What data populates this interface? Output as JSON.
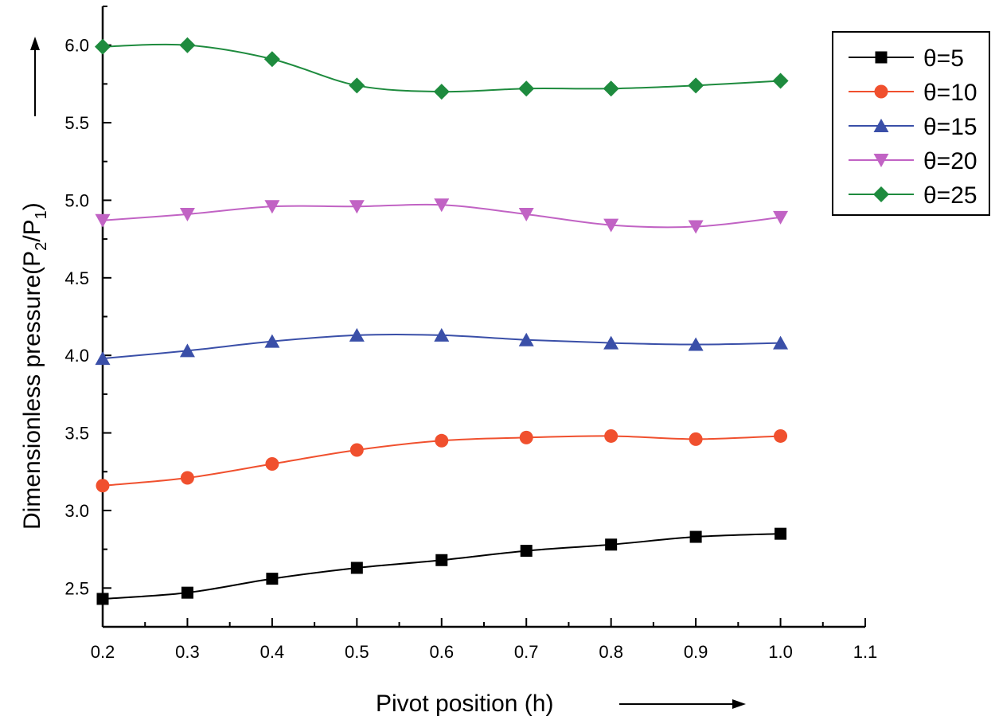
{
  "chart_data": {
    "type": "line",
    "title": "",
    "xlabel": "Pivot position (h)",
    "ylabel_main": "Dimensionless pressure(P",
    "ylabel_sub1": "2",
    "ylabel_mid": "/P",
    "ylabel_sub2": "1",
    "ylabel_end": ")",
    "xlim": [
      0.2,
      1.1
    ],
    "ylim": [
      2.25,
      6.25
    ],
    "x_ticks": [
      "0.2",
      "0.3",
      "0.4",
      "0.5",
      "0.6",
      "0.7",
      "0.8",
      "0.9",
      "1.0",
      "1.1"
    ],
    "y_ticks": [
      "2.5",
      "3.0",
      "3.5",
      "4.0",
      "4.5",
      "5.0",
      "5.5",
      "6.0"
    ],
    "x": [
      0.2,
      0.3,
      0.4,
      0.5,
      0.6,
      0.7,
      0.8,
      0.9,
      1.0
    ],
    "legend_position": "top-right",
    "series": [
      {
        "name": "θ=5",
        "color": "#000000",
        "marker": "square",
        "values": [
          2.43,
          2.47,
          2.56,
          2.63,
          2.68,
          2.74,
          2.78,
          2.83,
          2.85
        ]
      },
      {
        "name": "θ=10",
        "color": "#f0502e",
        "marker": "circle",
        "values": [
          3.16,
          3.21,
          3.3,
          3.39,
          3.45,
          3.47,
          3.48,
          3.46,
          3.48
        ]
      },
      {
        "name": "θ=15",
        "color": "#3a4fa8",
        "marker": "triangle-up",
        "values": [
          3.98,
          4.03,
          4.09,
          4.13,
          4.13,
          4.1,
          4.08,
          4.07,
          4.08
        ]
      },
      {
        "name": "θ=20",
        "color": "#c163c4",
        "marker": "triangle-down",
        "values": [
          4.87,
          4.91,
          4.96,
          4.96,
          4.97,
          4.91,
          4.84,
          4.83,
          4.89
        ]
      },
      {
        "name": "θ=25",
        "color": "#1e8b3e",
        "marker": "diamond",
        "values": [
          5.99,
          6.0,
          5.91,
          5.74,
          5.7,
          5.72,
          5.72,
          5.74,
          5.77
        ]
      }
    ]
  }
}
